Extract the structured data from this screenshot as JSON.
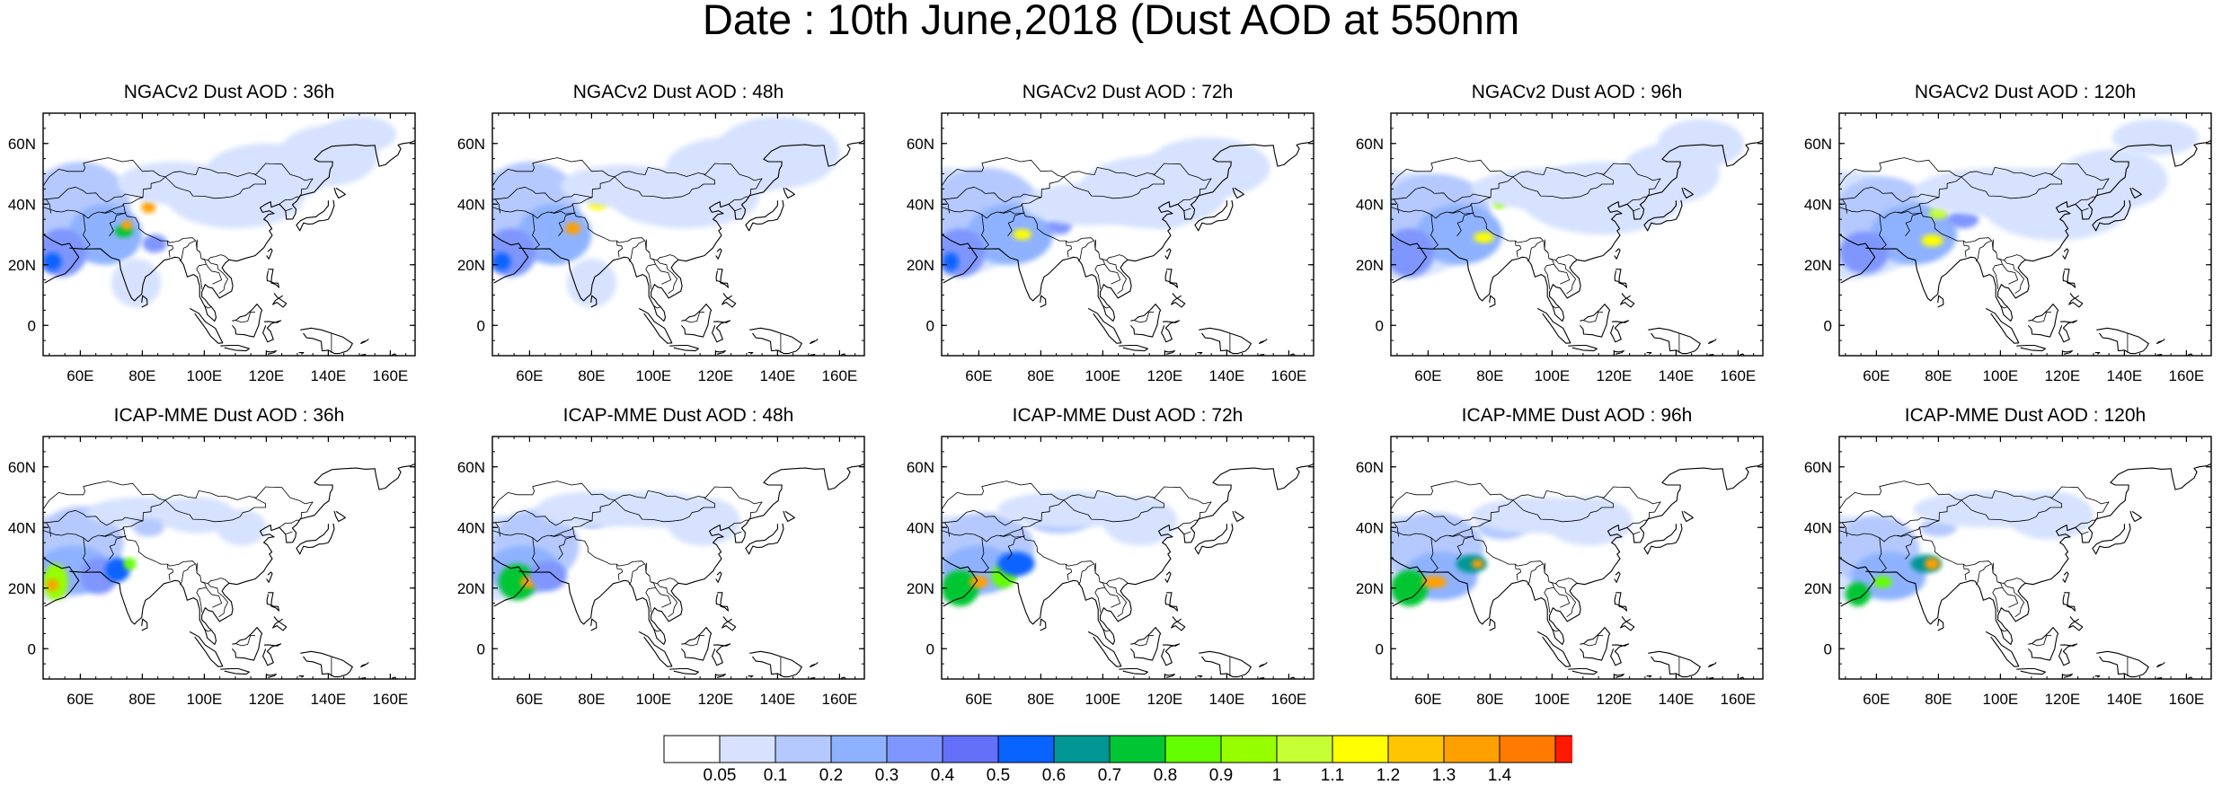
{
  "title": "Date : 10th June,2018 (Dust AOD at 550nm",
  "map_extent": {
    "lon": [
      48,
      168
    ],
    "lat": [
      -10,
      70
    ]
  },
  "lat_ticks": [
    {
      "v": 0,
      "label": "0"
    },
    {
      "v": 20,
      "label": "20N"
    },
    {
      "v": 40,
      "label": "40N"
    },
    {
      "v": 60,
      "label": "60N"
    }
  ],
  "lon_ticks": [
    {
      "v": 60,
      "label": "60E"
    },
    {
      "v": 80,
      "label": "80E"
    },
    {
      "v": 100,
      "label": "100E"
    },
    {
      "v": 120,
      "label": "120E"
    },
    {
      "v": 140,
      "label": "140E"
    },
    {
      "v": 160,
      "label": "160E"
    }
  ],
  "colorbar": {
    "colors": [
      "#ffffff",
      "#d6e2ff",
      "#b5c9ff",
      "#8eb2ff",
      "#7f96ff",
      "#6370f8",
      "#0963ff",
      "#009696",
      "#00c633",
      "#63ff00",
      "#96ff00",
      "#c6ff33",
      "#ffff00",
      "#ffc600",
      "#ffa000",
      "#ff7c00",
      "#ff1900"
    ],
    "labels": [
      "0.05",
      "0.1",
      "0.2",
      "0.3",
      "0.4",
      "0.5",
      "0.6",
      "0.7",
      "0.8",
      "0.9",
      "1",
      "1.1",
      "1.2",
      "1.3",
      "1.4"
    ]
  },
  "panels": [
    {
      "title": "NGACv2 Dust AOD : 36h",
      "model": "NGACv2",
      "lead": "36h"
    },
    {
      "title": "NGACv2 Dust AOD : 48h",
      "model": "NGACv2",
      "lead": "48h"
    },
    {
      "title": "NGACv2 Dust AOD : 72h",
      "model": "NGACv2",
      "lead": "72h"
    },
    {
      "title": "NGACv2 Dust AOD : 96h",
      "model": "NGACv2",
      "lead": "96h"
    },
    {
      "title": "NGACv2 Dust AOD : 120h",
      "model": "NGACv2",
      "lead": "120h"
    },
    {
      "title": "ICAP-MME Dust AOD : 36h",
      "model": "ICAP-MME",
      "lead": "36h"
    },
    {
      "title": "ICAP-MME Dust AOD : 48h",
      "model": "ICAP-MME",
      "lead": "48h"
    },
    {
      "title": "ICAP-MME Dust AOD : 72h",
      "model": "ICAP-MME",
      "lead": "72h"
    },
    {
      "title": "ICAP-MME Dust AOD : 96h",
      "model": "ICAP-MME",
      "lead": "96h"
    },
    {
      "title": "ICAP-MME Dust AOD : 120h",
      "model": "ICAP-MME",
      "lead": "120h"
    }
  ]
}
